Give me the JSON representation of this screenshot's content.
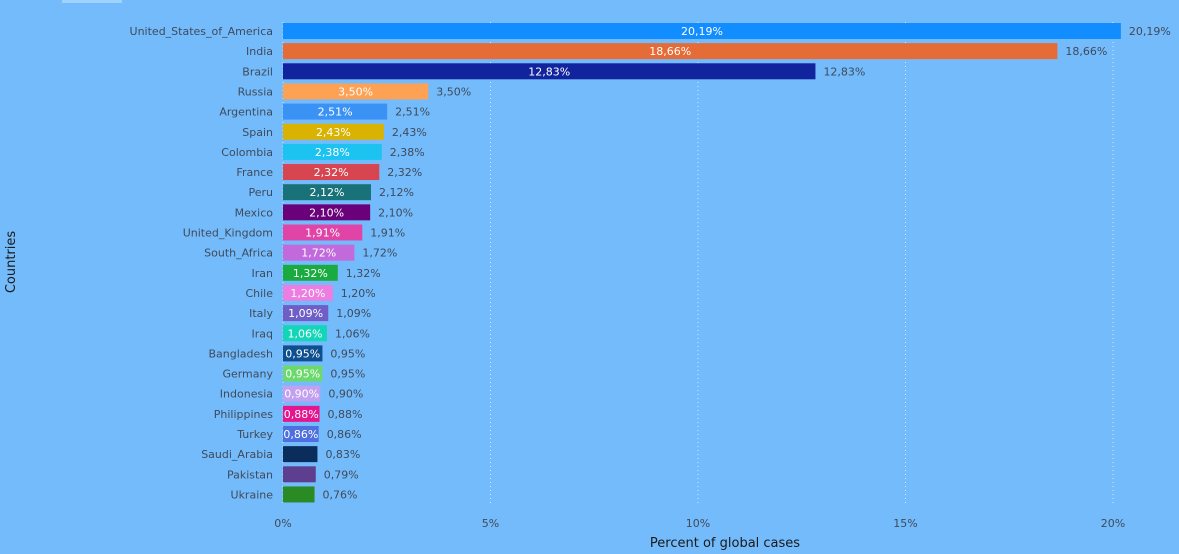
{
  "chart_data": {
    "type": "bar",
    "orientation": "horizontal",
    "title": "",
    "xlabel": "Percent of global cases",
    "ylabel": "Countries",
    "xlim": [
      0,
      21
    ],
    "x_ticks": [
      0,
      5,
      10,
      15,
      20
    ],
    "x_tick_labels": [
      "0%",
      "5%",
      "10%",
      "15%",
      "20%"
    ],
    "grid": "vertical dotted",
    "legend": "none",
    "categories": [
      "United_States_of_America",
      "India",
      "Brazil",
      "Russia",
      "Argentina",
      "Spain",
      "Colombia",
      "France",
      "Peru",
      "Mexico",
      "United_Kingdom",
      "South_Africa",
      "Iran",
      "Chile",
      "Italy",
      "Iraq",
      "Bangladesh",
      "Germany",
      "Indonesia",
      "Philippines",
      "Turkey",
      "Saudi_Arabia",
      "Pakistan",
      "Ukraine"
    ],
    "values": [
      20.19,
      18.66,
      12.83,
      3.5,
      2.51,
      2.43,
      2.38,
      2.32,
      2.12,
      2.1,
      1.91,
      1.72,
      1.32,
      1.2,
      1.09,
      1.06,
      0.95,
      0.95,
      0.9,
      0.88,
      0.86,
      0.83,
      0.79,
      0.76
    ],
    "value_labels": [
      "20,19%",
      "18,66%",
      "12,83%",
      "3,50%",
      "2,51%",
      "2,43%",
      "2,38%",
      "2,32%",
      "2,12%",
      "2,10%",
      "1,91%",
      "1,72%",
      "1,32%",
      "1,20%",
      "1,09%",
      "1,06%",
      "0,95%",
      "0,95%",
      "0,90%",
      "0,88%",
      "0,86%",
      "0,83%",
      "0,79%",
      "0,76%"
    ],
    "inner_labels": [
      true,
      true,
      true,
      true,
      true,
      true,
      true,
      true,
      true,
      true,
      true,
      true,
      true,
      true,
      true,
      true,
      true,
      true,
      true,
      true,
      true,
      false,
      false,
      false
    ],
    "colors": [
      "#118dff",
      "#e66c37",
      "#12239e",
      "#fda155",
      "#3b92f5",
      "#d9b300",
      "#1cc2f0",
      "#d64550",
      "#197278",
      "#6b007b",
      "#e044a7",
      "#c26adb",
      "#1aab40",
      "#ed7ee1",
      "#6f5ec6",
      "#13d6b8",
      "#0e4f8f",
      "#6bd96b",
      "#c39ff0",
      "#e6148f",
      "#4e6fe0",
      "#0b2d5c",
      "#5e3f8f",
      "#2a8a24"
    ]
  }
}
